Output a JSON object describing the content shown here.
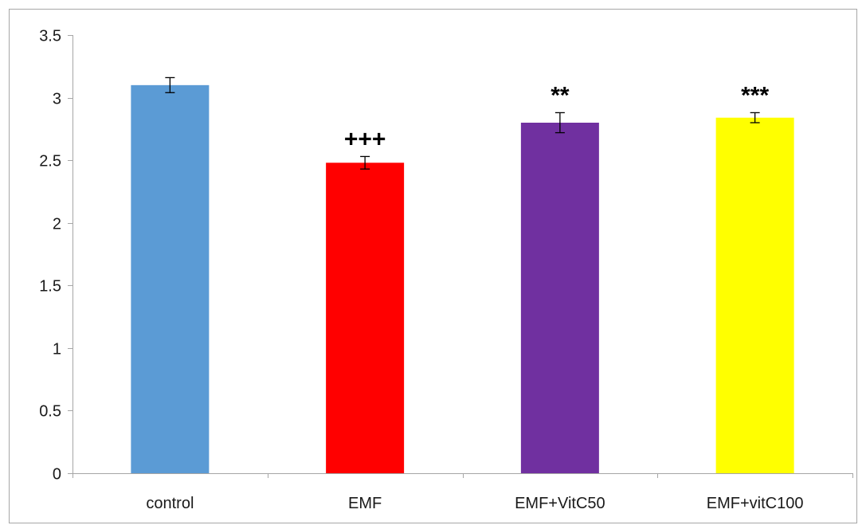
{
  "chart_data": {
    "type": "bar",
    "title": "",
    "xlabel": "",
    "ylabel": "",
    "categories": [
      "control",
      "EMF",
      "EMF+VitC50",
      "EMF+vitC100"
    ],
    "values": [
      3.1,
      2.48,
      2.8,
      2.84
    ],
    "errors": [
      0.06,
      0.05,
      0.08,
      0.04
    ],
    "annotations": [
      "",
      "+++",
      "**",
      "***"
    ],
    "colors": [
      "#5b9bd5",
      "#ff0000",
      "#7030a0",
      "#ffff00"
    ],
    "ylim": [
      0,
      3.5
    ],
    "yticks": [
      "0",
      "0.5",
      "1",
      "1.5",
      "2",
      "2.5",
      "3",
      "3.5"
    ],
    "grid": false,
    "legend": "none"
  }
}
